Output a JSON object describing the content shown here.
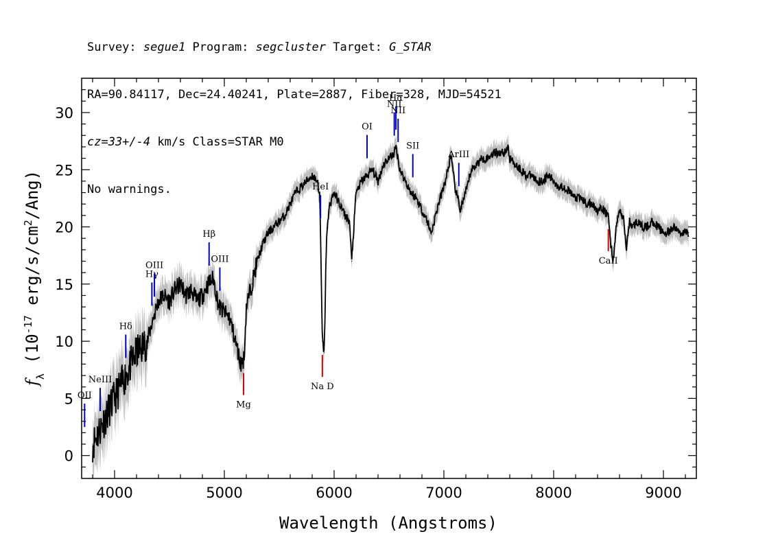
{
  "header": {
    "line1": {
      "survey_label": "Survey: ",
      "survey": "segue1",
      "program_label": " Program: ",
      "program": "segcluster",
      "target_label": " Target: ",
      "target": "G_STAR"
    },
    "line2": "RA=90.84117, Dec=24.40241, Plate=2887, Fiber=328, MJD=54521",
    "line3": {
      "cz": "cz=33+/-4",
      "rest": " km/s Class=STAR M0"
    },
    "line4": "No warnings."
  },
  "chart_data": {
    "type": "line",
    "xlabel": "Wavelength (Angstroms)",
    "ylabel": "f_λ (10^-17 erg/s/cm^2/Ang)",
    "xlim": [
      3700,
      9300
    ],
    "ylim": [
      -2,
      33
    ],
    "xticks": [
      4000,
      5000,
      6000,
      7000,
      8000,
      9000
    ],
    "yticks": [
      0,
      5,
      10,
      15,
      20,
      25,
      30
    ],
    "grid": false,
    "colors": {
      "flux": "#000000",
      "error_band": "#c0c0c0",
      "emission_lines": "#0000cc",
      "absorption_lines": "#dd0000"
    },
    "series": [
      {
        "x": [
          3800,
          3850,
          3900,
          3950,
          4000,
          4050,
          4100,
          4150,
          4200,
          4250,
          4300,
          4350,
          4400,
          4450,
          4500,
          4550,
          4600,
          4650,
          4700,
          4750,
          4800,
          4850,
          4900,
          4950,
          5000,
          5050,
          5100,
          5150,
          5180,
          5200,
          5250,
          5300,
          5350,
          5400,
          5450,
          5500,
          5550,
          5600,
          5650,
          5700,
          5750,
          5800,
          5850,
          5870,
          5893,
          5910,
          5930,
          5960,
          6000,
          6050,
          6100,
          6140,
          6160,
          6180,
          6200,
          6250,
          6300,
          6350,
          6400,
          6450,
          6500,
          6550,
          6563,
          6600,
          6650,
          6700,
          6750,
          6800,
          6850,
          6880,
          6900,
          6950,
          7000,
          7050,
          7060,
          7100,
          7150,
          7200,
          7250,
          7300,
          7350,
          7400,
          7450,
          7500,
          7550,
          7580,
          7600,
          7650,
          7700,
          7750,
          7800,
          7850,
          7900,
          7950,
          8000,
          8050,
          8100,
          8150,
          8200,
          8250,
          8300,
          8350,
          8400,
          8450,
          8498,
          8520,
          8542,
          8570,
          8600,
          8620,
          8640,
          8662,
          8690,
          8720,
          8760,
          8800,
          8850,
          8900,
          8950,
          9000,
          9050,
          9100,
          9150,
          9200,
          9230
        ],
        "y": [
          1.0,
          2.0,
          3.0,
          4.0,
          5.0,
          6.0,
          7.0,
          8.0,
          9.0,
          9.5,
          10.0,
          12.0,
          13.5,
          14.0,
          13.5,
          14.5,
          15.0,
          14.0,
          14.5,
          13.5,
          14.0,
          15.0,
          15.5,
          13.0,
          12.5,
          12.0,
          10.0,
          8.0,
          8.5,
          13.0,
          15.0,
          17.0,
          18.5,
          19.5,
          20.0,
          20.5,
          21.0,
          22.0,
          23.0,
          23.5,
          24.0,
          24.5,
          24.0,
          22.5,
          10.0,
          9.0,
          19.0,
          22.0,
          23.0,
          22.0,
          21.0,
          20.5,
          17.0,
          20.0,
          23.0,
          24.0,
          24.5,
          25.0,
          24.0,
          25.5,
          26.0,
          26.5,
          27.0,
          25.0,
          24.0,
          23.0,
          22.5,
          21.5,
          20.5,
          19.5,
          20.0,
          22.0,
          23.5,
          25.5,
          26.5,
          23.5,
          21.5,
          23.0,
          25.0,
          25.5,
          26.0,
          26.0,
          26.5,
          26.5,
          26.5,
          27.0,
          26.0,
          25.5,
          25.0,
          24.5,
          24.5,
          24.0,
          24.0,
          24.5,
          24.0,
          23.5,
          23.5,
          23.0,
          22.5,
          22.5,
          22.0,
          22.0,
          21.5,
          21.5,
          21.0,
          18.5,
          17.0,
          20.0,
          21.5,
          21.0,
          20.5,
          18.0,
          20.5,
          20.0,
          20.5,
          20.0,
          20.0,
          20.5,
          20.0,
          19.5,
          19.5,
          20.0,
          19.5,
          19.5,
          19.5
        ]
      }
    ],
    "annotations": [
      {
        "label": "OII",
        "x": 3727,
        "color": "emission"
      },
      {
        "label": "NeIII",
        "x": 3869,
        "color": "emission"
      },
      {
        "label": "Hδ",
        "x": 4102,
        "color": "emission"
      },
      {
        "label": "Hγ",
        "x": 4340,
        "color": "emission"
      },
      {
        "label": "OIII",
        "x": 4363,
        "color": "emission"
      },
      {
        "label": "Hβ",
        "x": 4861,
        "color": "emission"
      },
      {
        "label": "OIII",
        "x": 4959,
        "color": "emission"
      },
      {
        "label": "HeI",
        "x": 5876,
        "color": "emission"
      },
      {
        "label": "OI",
        "x": 6300,
        "color": "emission"
      },
      {
        "label": "NII",
        "x": 6548,
        "color": "emission"
      },
      {
        "label": "Hα",
        "x": 6563,
        "color": "emission"
      },
      {
        "label": "NII",
        "x": 6583,
        "color": "emission"
      },
      {
        "label": "SII",
        "x": 6717,
        "color": "emission"
      },
      {
        "label": "ArIII",
        "x": 7136,
        "color": "emission"
      },
      {
        "label": "Mg",
        "x": 5175,
        "color": "absorption"
      },
      {
        "label": "Na D",
        "x": 5893,
        "color": "absorption"
      },
      {
        "label": "CaII",
        "x": 8498,
        "color": "absorption"
      }
    ]
  }
}
